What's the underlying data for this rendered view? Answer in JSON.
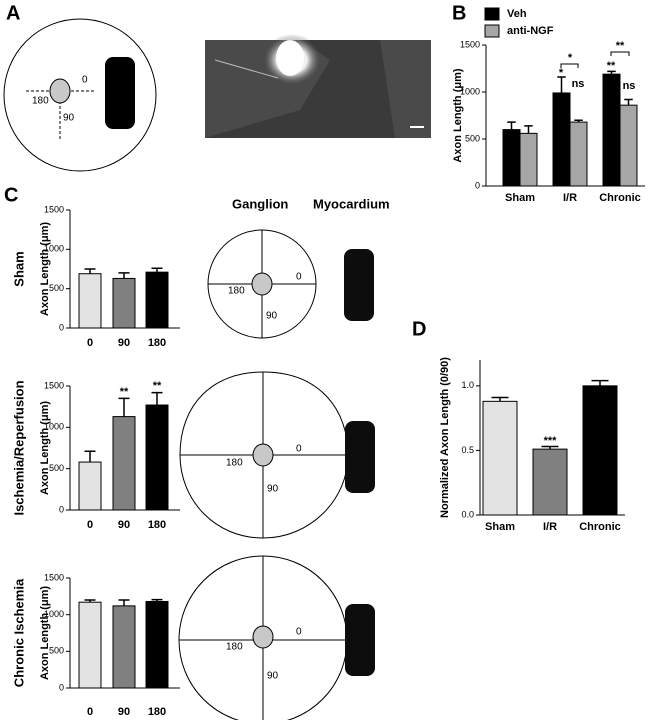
{
  "panels": {
    "letters": [
      "A",
      "B",
      "C",
      "D"
    ],
    "column_headers": [
      "Ganglion",
      "Myocardium"
    ],
    "diagrams": [
      {
        "labels": [
          "0",
          "90",
          "180"
        ]
      },
      {
        "labels": [
          "0",
          "90",
          "180"
        ]
      },
      {
        "labels": [
          "0",
          "90",
          "180"
        ]
      },
      {
        "labels": [
          "0",
          "90",
          "180"
        ]
      }
    ]
  },
  "chart_data": [
    {
      "type": "bar",
      "ylabel": "Axon Length (μm)",
      "categories": [
        "Sham",
        "I/R",
        "Chronic"
      ],
      "series": [
        {
          "name": "Veh",
          "color": "#000000",
          "values": [
            600,
            990,
            1190
          ],
          "errors": [
            80,
            170,
            30
          ]
        },
        {
          "name": "anti-NGF",
          "color": "#a6a6a6",
          "values": [
            560,
            680,
            860
          ],
          "errors": [
            80,
            20,
            60
          ]
        }
      ],
      "annotations": [
        "*",
        "ns",
        "**",
        "ns",
        "*",
        "**"
      ],
      "ylim": [
        0,
        1500
      ],
      "yticks": [
        0,
        500,
        1000,
        1500
      ]
    },
    {
      "type": "bar",
      "row_label": "Sham",
      "ylabel": "Axon Length (μm)",
      "categories": [
        "0",
        "90",
        "180"
      ],
      "colors": [
        "#e3e3e3",
        "#808080",
        "#000000"
      ],
      "values": [
        690,
        630,
        710
      ],
      "errors": [
        60,
        70,
        50
      ],
      "annotations": [],
      "ylim": [
        0,
        1500
      ],
      "yticks": [
        0,
        500,
        1000,
        1500
      ]
    },
    {
      "type": "bar",
      "row_label": "Ischemia/Reperfusion",
      "ylabel": "Axon Length (μm)",
      "categories": [
        "0",
        "90",
        "180"
      ],
      "colors": [
        "#e3e3e3",
        "#808080",
        "#000000"
      ],
      "values": [
        580,
        1130,
        1270
      ],
      "errors": [
        130,
        220,
        150
      ],
      "annotations": [
        "**",
        "**"
      ],
      "ylim": [
        0,
        1500
      ],
      "yticks": [
        0,
        500,
        1000,
        1500
      ]
    },
    {
      "type": "bar",
      "row_label": "Chronic Ischemia",
      "ylabel": "Axon Length (μm)",
      "categories": [
        "0",
        "90",
        "180"
      ],
      "colors": [
        "#e3e3e3",
        "#808080",
        "#000000"
      ],
      "values": [
        1170,
        1120,
        1180
      ],
      "errors": [
        30,
        80,
        25
      ],
      "annotations": [],
      "ylim": [
        0,
        1500
      ],
      "yticks": [
        0,
        500,
        1000,
        1500
      ]
    },
    {
      "type": "bar",
      "ylabel": "Normalized Axon Length (0/90)",
      "categories": [
        "Sham",
        "I/R",
        "Chronic"
      ],
      "colors": [
        "#e3e3e3",
        "#808080",
        "#000000"
      ],
      "values": [
        0.88,
        0.51,
        1.0
      ],
      "errors": [
        0.03,
        0.02,
        0.04
      ],
      "annotations": [
        "***"
      ],
      "ylim": [
        0,
        1.2
      ],
      "yticks": [
        {
          "value": 0,
          "label": "0.0"
        },
        {
          "value": 0.5,
          "label": "0.5"
        },
        {
          "value": 1,
          "label": "1.0"
        }
      ]
    }
  ]
}
